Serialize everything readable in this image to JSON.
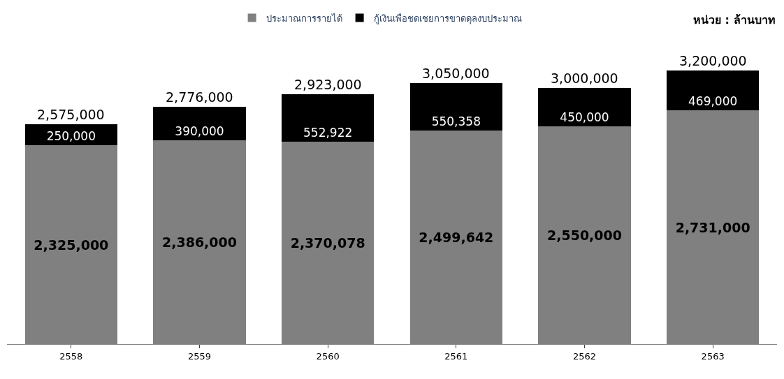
{
  "chart_data": {
    "type": "bar",
    "stacked": true,
    "categories": [
      "2558",
      "2559",
      "2560",
      "2561",
      "2562",
      "2563"
    ],
    "series": [
      {
        "name": "ประมาณการรายได้",
        "color": "#808080",
        "values": [
          2325000,
          2386000,
          2370078,
          2499642,
          2550000,
          2731000
        ],
        "value_labels": [
          "2,325,000",
          "2,386,000",
          "2,370,078",
          "2,499,642",
          "2,550,000",
          "2,731,000"
        ]
      },
      {
        "name": "กู้เงินเพื่อชดเชยการขาดดุลงบประมาณ",
        "color": "#000000",
        "values": [
          250000,
          390000,
          552922,
          550358,
          450000,
          469000
        ],
        "value_labels": [
          "250,000",
          "390,000",
          "552,922",
          "550,358",
          "450,000",
          "469,000"
        ]
      }
    ],
    "totals": [
      "2,575,000",
      "2,776,000",
      "2,923,000",
      "3,050,000",
      "3,000,000",
      "3,200,000"
    ],
    "annotations": [
      "หน่วย : ล้านบาท"
    ],
    "legend": "top"
  }
}
